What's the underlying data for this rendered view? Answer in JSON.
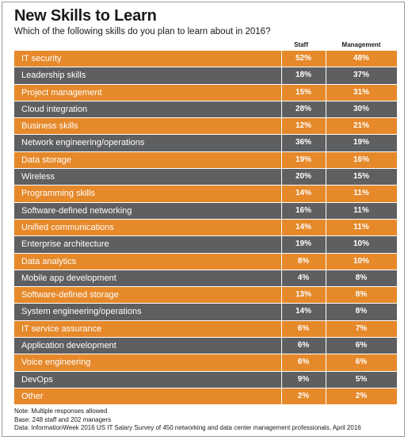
{
  "title": "New Skills to Learn",
  "subtitle": "Which of the following skills do you plan to learn about in 2016?",
  "columns": {
    "staff": "Staff",
    "management": "Management"
  },
  "rows": [
    {
      "skill": "IT security",
      "staff": "52%",
      "management": "48%",
      "color": "#e6892a"
    },
    {
      "skill": "Leadership skills",
      "staff": "18%",
      "management": "37%",
      "color": "#5e5f61"
    },
    {
      "skill": "Project management",
      "staff": "15%",
      "management": "31%",
      "color": "#e6892a"
    },
    {
      "skill": "Cloud integration",
      "staff": "28%",
      "management": "30%",
      "color": "#5e5f61"
    },
    {
      "skill": "Business skills",
      "staff": "12%",
      "management": "21%",
      "color": "#e6892a"
    },
    {
      "skill": "Network engineering/operations",
      "staff": "36%",
      "management": "19%",
      "color": "#5e5f61"
    },
    {
      "skill": "Data storage",
      "staff": "19%",
      "management": "16%",
      "color": "#e6892a"
    },
    {
      "skill": "Wireless",
      "staff": "20%",
      "management": "15%",
      "color": "#5e5f61"
    },
    {
      "skill": "Programming skills",
      "staff": "14%",
      "management": "11%",
      "color": "#e6892a"
    },
    {
      "skill": "Software-defined networking",
      "staff": "16%",
      "management": "11%",
      "color": "#5e5f61"
    },
    {
      "skill": "Unified communications",
      "staff": "14%",
      "management": "11%",
      "color": "#e6892a"
    },
    {
      "skill": "Enterprise architecture",
      "staff": "19%",
      "management": "10%",
      "color": "#5e5f61"
    },
    {
      "skill": "Data analytics",
      "staff": "8%",
      "management": "10%",
      "color": "#e6892a"
    },
    {
      "skill": "Mobile app development",
      "staff": "4%",
      "management": "8%",
      "color": "#5e5f61"
    },
    {
      "skill": "Software-defined storage",
      "staff": "13%",
      "management": "8%",
      "color": "#e6892a"
    },
    {
      "skill": "System engineering/operations",
      "staff": "14%",
      "management": "8%",
      "color": "#5e5f61"
    },
    {
      "skill": "IT service assurance",
      "staff": "6%",
      "management": "7%",
      "color": "#e6892a"
    },
    {
      "skill": "Application development",
      "staff": "6%",
      "management": "6%",
      "color": "#5e5f61"
    },
    {
      "skill": "Voice engineering",
      "staff": "6%",
      "management": "6%",
      "color": "#e6892a"
    },
    {
      "skill": "DevOps",
      "staff": "9%",
      "management": "5%",
      "color": "#5e5f61"
    },
    {
      "skill": "Other",
      "staff": "2%",
      "management": "2%",
      "color": "#e6892a"
    }
  ],
  "notes": [
    "Note: Multiple responses allowed",
    "Base: 248 staff and 202 managers",
    "Data: InformationWeek 2016 US IT Salary Survey of 450 networking and data center management professionals, April 2016"
  ],
  "colors": {
    "orange": "#e6892a",
    "gray": "#5e5f61"
  }
}
